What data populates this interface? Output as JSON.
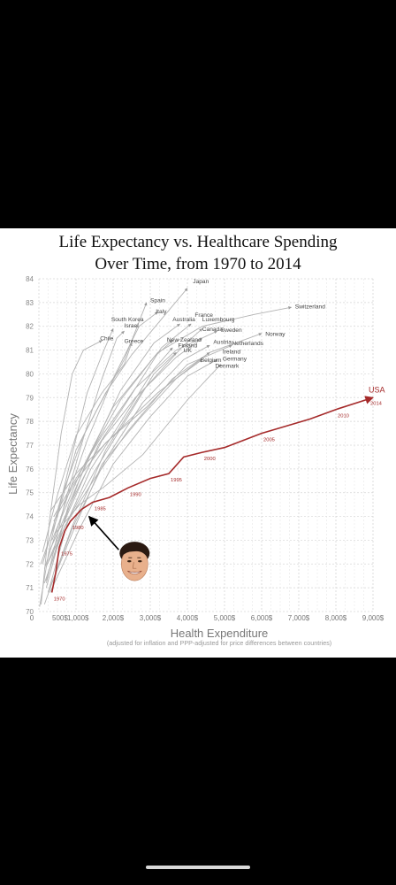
{
  "title_line1": "Life Expectancy vs. Healthcare Spending",
  "title_line2": "Over Time, from 1970 to 2014",
  "chart_data": {
    "type": "line",
    "xlabel": "Health Expenditure",
    "xlabel_note": "(adjusted for inflation and PPP-adjusted for price differences between countries)",
    "ylabel": "Life Expectancy",
    "xlim": [
      0,
      9000
    ],
    "ylim": [
      70,
      84
    ],
    "x_ticks": [
      0,
      500,
      1000,
      2000,
      3000,
      4000,
      5000,
      6000,
      7000,
      8000,
      9000
    ],
    "x_tick_labels": [
      "0",
      "500$",
      "1,000$",
      "2,000$",
      "3,000$",
      "4,000$",
      "5,000$",
      "6,000$",
      "7,000$",
      "8,000$",
      "9,000$"
    ],
    "y_ticks": [
      70,
      71,
      72,
      73,
      74,
      75,
      76,
      77,
      78,
      79,
      80,
      81,
      82,
      83,
      84
    ],
    "grid": true,
    "highlight_series": {
      "name": "USA",
      "color": "#a52a2a",
      "end_label": "2014",
      "points": [
        {
          "x": 350,
          "y": 70.8,
          "label": "1970"
        },
        {
          "x": 450,
          "y": 71.6
        },
        {
          "x": 550,
          "y": 72.7,
          "label": "1975"
        },
        {
          "x": 700,
          "y": 73.4
        },
        {
          "x": 850,
          "y": 73.8,
          "label": "1980"
        },
        {
          "x": 1150,
          "y": 74.3
        },
        {
          "x": 1450,
          "y": 74.6,
          "label": "1985"
        },
        {
          "x": 1900,
          "y": 74.8
        },
        {
          "x": 2400,
          "y": 75.2,
          "label": "1990"
        },
        {
          "x": 3000,
          "y": 75.6
        },
        {
          "x": 3500,
          "y": 75.8,
          "label": "1995"
        },
        {
          "x": 3900,
          "y": 76.5
        },
        {
          "x": 4400,
          "y": 76.7,
          "label": "2000"
        },
        {
          "x": 5000,
          "y": 76.9
        },
        {
          "x": 6000,
          "y": 77.5,
          "label": "2005"
        },
        {
          "x": 7300,
          "y": 78.1
        },
        {
          "x": 8000,
          "y": 78.5,
          "label": "2010"
        },
        {
          "x": 9000,
          "y": 79.0
        }
      ]
    },
    "series_color": "#b3b3b3",
    "series": [
      {
        "name": "Japan",
        "points": [
          [
            100,
            72.0
          ],
          [
            600,
            74.8
          ],
          [
            1200,
            77.4
          ],
          [
            1800,
            79.2
          ],
          [
            2500,
            80.8
          ],
          [
            3300,
            82.3
          ],
          [
            4000,
            83.6
          ]
        ]
      },
      {
        "name": "Spain",
        "points": [
          [
            50,
            72.0
          ],
          [
            500,
            74.0
          ],
          [
            1000,
            76.8
          ],
          [
            1600,
            78.6
          ],
          [
            2300,
            80.6
          ],
          [
            2900,
            83.0
          ]
        ]
      },
      {
        "name": "Italy",
        "points": [
          [
            150,
            71.8
          ],
          [
            700,
            74.5
          ],
          [
            1300,
            77.2
          ],
          [
            2000,
            79.8
          ],
          [
            2700,
            82.0
          ],
          [
            3200,
            82.6
          ]
        ]
      },
      {
        "name": "France",
        "points": [
          [
            250,
            72.1
          ],
          [
            800,
            74.2
          ],
          [
            1600,
            77.0
          ],
          [
            2400,
            78.9
          ],
          [
            3300,
            81.1
          ],
          [
            4100,
            82.1
          ]
        ]
      },
      {
        "name": "Australia",
        "points": [
          [
            200,
            71.0
          ],
          [
            800,
            74.5
          ],
          [
            1500,
            77.0
          ],
          [
            2200,
            79.3
          ],
          [
            3100,
            81.3
          ],
          [
            3800,
            82.1
          ]
        ]
      },
      {
        "name": "Luxembourg",
        "points": [
          [
            150,
            70.3
          ],
          [
            900,
            73.6
          ],
          [
            1800,
            76.8
          ],
          [
            2800,
            79.3
          ],
          [
            3900,
            81.2
          ],
          [
            4400,
            81.9
          ]
        ]
      },
      {
        "name": "Switzerland",
        "points": [
          [
            350,
            73.0
          ],
          [
            1100,
            75.8
          ],
          [
            2000,
            78.6
          ],
          [
            3200,
            80.9
          ],
          [
            4400,
            82.0
          ],
          [
            5800,
            82.5
          ],
          [
            6800,
            82.8
          ]
        ]
      },
      {
        "name": "South Korea",
        "points": [
          [
            20,
            70.2
          ],
          [
            300,
            72.8
          ],
          [
            800,
            76.0
          ],
          [
            1300,
            79.2
          ],
          [
            1700,
            80.8
          ],
          [
            2000,
            81.9
          ]
        ]
      },
      {
        "name": "Israel",
        "points": [
          [
            200,
            71.2
          ],
          [
            700,
            74.6
          ],
          [
            1200,
            77.3
          ],
          [
            1700,
            79.8
          ],
          [
            2100,
            81.5
          ],
          [
            2300,
            81.8
          ]
        ]
      },
      {
        "name": "Canada",
        "points": [
          [
            300,
            72.6
          ],
          [
            900,
            74.7
          ],
          [
            1700,
            77.2
          ],
          [
            2600,
            79.0
          ],
          [
            3700,
            80.7
          ],
          [
            4400,
            81.5
          ]
        ]
      },
      {
        "name": "Sweden",
        "points": [
          [
            400,
            74.0
          ],
          [
            1000,
            75.6
          ],
          [
            1700,
            77.4
          ],
          [
            2600,
            79.4
          ],
          [
            3700,
            81.0
          ],
          [
            4800,
            81.8
          ]
        ]
      },
      {
        "name": "Norway",
        "points": [
          [
            300,
            74.2
          ],
          [
            1000,
            75.8
          ],
          [
            2000,
            77.4
          ],
          [
            3200,
            79.2
          ],
          [
            4600,
            80.9
          ],
          [
            6000,
            81.7
          ]
        ]
      },
      {
        "name": "Chile",
        "points": [
          [
            60,
            70.3
          ],
          [
            300,
            74.0
          ],
          [
            600,
            77.5
          ],
          [
            900,
            80.0
          ],
          [
            1200,
            81.0
          ],
          [
            1700,
            81.4
          ]
        ]
      },
      {
        "name": "Greece",
        "points": [
          [
            100,
            72.5
          ],
          [
            500,
            74.9
          ],
          [
            1000,
            77.4
          ],
          [
            1700,
            79.2
          ],
          [
            2300,
            80.4
          ],
          [
            2500,
            81.3
          ]
        ]
      },
      {
        "name": "New Zealand",
        "points": [
          [
            200,
            71.3
          ],
          [
            700,
            73.9
          ],
          [
            1300,
            76.4
          ],
          [
            2200,
            78.9
          ],
          [
            3100,
            80.7
          ],
          [
            3600,
            81.4
          ]
        ]
      },
      {
        "name": "Finland",
        "points": [
          [
            250,
            70.8
          ],
          [
            800,
            73.9
          ],
          [
            1500,
            75.9
          ],
          [
            2400,
            78.2
          ],
          [
            3100,
            80.0
          ],
          [
            3700,
            80.9
          ]
        ]
      },
      {
        "name": "UK",
        "points": [
          [
            200,
            71.9
          ],
          [
            800,
            73.9
          ],
          [
            1400,
            76.0
          ],
          [
            2300,
            78.2
          ],
          [
            3100,
            80.2
          ],
          [
            3600,
            81.1
          ]
        ]
      },
      {
        "name": "Austria",
        "points": [
          [
            250,
            70.8
          ],
          [
            900,
            73.5
          ],
          [
            1800,
            76.4
          ],
          [
            2800,
            78.8
          ],
          [
            3900,
            80.6
          ],
          [
            4600,
            81.2
          ]
        ]
      },
      {
        "name": "Netherlands",
        "points": [
          [
            400,
            73.8
          ],
          [
            1000,
            75.5
          ],
          [
            1800,
            77.1
          ],
          [
            2900,
            78.6
          ],
          [
            4000,
            80.4
          ],
          [
            5200,
            81.2
          ]
        ]
      },
      {
        "name": "Ireland",
        "points": [
          [
            150,
            71.2
          ],
          [
            700,
            73.6
          ],
          [
            1500,
            75.6
          ],
          [
            2400,
            77.6
          ],
          [
            3600,
            79.8
          ],
          [
            4600,
            80.9
          ]
        ]
      },
      {
        "name": "Belgium",
        "points": [
          [
            300,
            71.0
          ],
          [
            900,
            73.3
          ],
          [
            1700,
            76.2
          ],
          [
            2700,
            78.1
          ],
          [
            3700,
            79.8
          ],
          [
            4400,
            80.6
          ]
        ]
      },
      {
        "name": "Germany",
        "points": [
          [
            300,
            70.8
          ],
          [
            1100,
            73.5
          ],
          [
            2000,
            76.2
          ],
          [
            3000,
            78.2
          ],
          [
            4000,
            79.9
          ],
          [
            4800,
            80.6
          ]
        ]
      },
      {
        "name": "Denmark",
        "points": [
          [
            450,
            73.3
          ],
          [
            1100,
            74.5
          ],
          [
            1800,
            75.3
          ],
          [
            2800,
            76.6
          ],
          [
            4000,
            78.9
          ],
          [
            4900,
            80.4
          ]
        ]
      }
    ],
    "labels": [
      {
        "text": "Japan",
        "x": 4150,
        "y": 83.9
      },
      {
        "text": "Spain",
        "x": 3000,
        "y": 83.1
      },
      {
        "text": "Italy",
        "x": 3150,
        "y": 82.65
      },
      {
        "text": "South Korea",
        "x": 1950,
        "y": 82.3
      },
      {
        "text": "Israel",
        "x": 2300,
        "y": 82.05
      },
      {
        "text": "France",
        "x": 4200,
        "y": 82.5
      },
      {
        "text": "Australia",
        "x": 3600,
        "y": 82.3
      },
      {
        "text": "Luxembourg",
        "x": 4400,
        "y": 82.3
      },
      {
        "text": "Canada",
        "x": 4400,
        "y": 81.9
      },
      {
        "text": "Sweden",
        "x": 4900,
        "y": 81.85
      },
      {
        "text": "Switzerland",
        "x": 6900,
        "y": 82.85
      },
      {
        "text": "Norway",
        "x": 6100,
        "y": 81.7
      },
      {
        "text": "Chile",
        "x": 1650,
        "y": 81.5
      },
      {
        "text": "Greece",
        "x": 2300,
        "y": 81.4
      },
      {
        "text": "New Zealand",
        "x": 3450,
        "y": 81.45
      },
      {
        "text": "Finland",
        "x": 3750,
        "y": 81.2
      },
      {
        "text": "UK",
        "x": 3900,
        "y": 81.0
      },
      {
        "text": "Austria",
        "x": 4700,
        "y": 81.35
      },
      {
        "text": "Netherlands",
        "x": 5200,
        "y": 81.3
      },
      {
        "text": "Ireland",
        "x": 4950,
        "y": 80.95
      },
      {
        "text": "Belgium",
        "x": 4350,
        "y": 80.6
      },
      {
        "text": "Germany",
        "x": 4950,
        "y": 80.65
      },
      {
        "text": "Denmark",
        "x": 4750,
        "y": 80.35
      }
    ],
    "annotation": {
      "type": "arrow-with-portrait",
      "to": {
        "x": 1350,
        "y": 74.0
      },
      "from": {
        "x": 2150,
        "y": 72.6
      }
    }
  }
}
